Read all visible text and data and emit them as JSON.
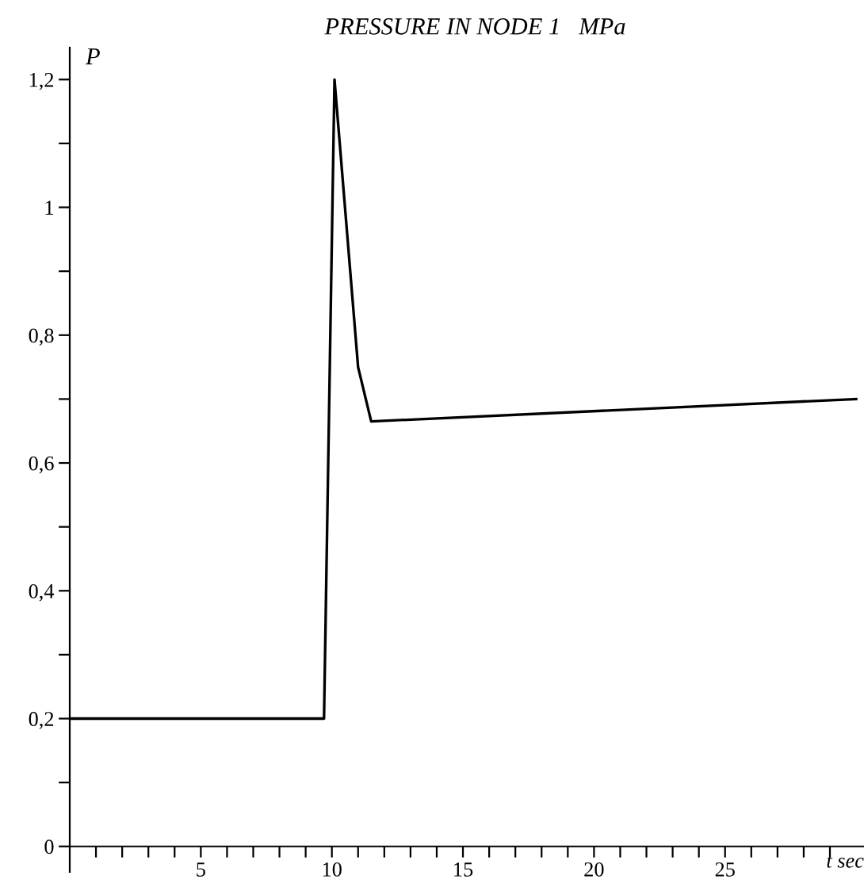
{
  "chart_data": {
    "type": "line",
    "title": "PRESSURE IN NODE 1   MPa",
    "xlabel": "t sec",
    "ylabel": "P",
    "x": [
      0,
      9.7,
      10.1,
      11.0,
      11.5,
      30
    ],
    "series": [
      {
        "color": "#000000",
        "values": [
          0.2,
          0.2,
          1.2,
          0.75,
          0.665,
          0.7
        ]
      }
    ],
    "xlim": [
      0,
      30.3
    ],
    "ylim": [
      -0.04,
      1.25
    ],
    "xticks": [
      {
        "value": 1,
        "label": null
      },
      {
        "value": 2,
        "label": null
      },
      {
        "value": 3,
        "label": null
      },
      {
        "value": 4,
        "label": null
      },
      5,
      {
        "value": 6,
        "label": null
      },
      {
        "value": 7,
        "label": null
      },
      {
        "value": 8,
        "label": null
      },
      {
        "value": 9,
        "label": null
      },
      10,
      {
        "value": 11,
        "label": null
      },
      {
        "value": 12,
        "label": null
      },
      {
        "value": 13,
        "label": null
      },
      {
        "value": 14,
        "label": null
      },
      15,
      {
        "value": 16,
        "label": null
      },
      {
        "value": 17,
        "label": null
      },
      {
        "value": 18,
        "label": null
      },
      {
        "value": 19,
        "label": null
      },
      20,
      {
        "value": 21,
        "label": null
      },
      {
        "value": 22,
        "label": null
      },
      {
        "value": 23,
        "label": null
      },
      {
        "value": 24,
        "label": null
      },
      25,
      {
        "value": 26,
        "label": null
      },
      {
        "value": 27,
        "label": null
      },
      {
        "value": 28,
        "label": null
      },
      {
        "value": 29,
        "label": null
      }
    ],
    "yticks": [
      {
        "value": 0,
        "label": "0"
      },
      {
        "value": 0.1,
        "label": null
      },
      {
        "value": 0.2,
        "label": "0,2"
      },
      {
        "value": 0.3,
        "label": null
      },
      {
        "value": 0.4,
        "label": "0,4"
      },
      {
        "value": 0.5,
        "label": null
      },
      {
        "value": 0.6,
        "label": "0,6"
      },
      {
        "value": 0.7,
        "label": null
      },
      {
        "value": 0.8,
        "label": "0,8"
      },
      {
        "value": 0.9,
        "label": null
      },
      {
        "value": 1,
        "label": "1"
      },
      {
        "value": 1.1,
        "label": null
      },
      {
        "value": 1.2,
        "label": "1,2"
      }
    ],
    "grid": false,
    "legend": false,
    "marker": "none",
    "line_style": "solid"
  }
}
